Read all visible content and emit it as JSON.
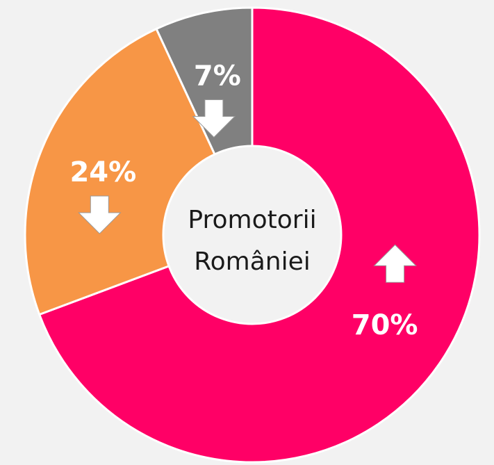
{
  "chart_data": {
    "type": "donut",
    "center_text": [
      "Promotorii",
      "României"
    ],
    "categories": [
      null,
      null,
      null
    ],
    "values": [
      70,
      24,
      7
    ],
    "value_labels": [
      "70%",
      "24%",
      "7%"
    ],
    "colors": [
      "#ff0066",
      "#f79646",
      "#808080"
    ],
    "trends": [
      "up",
      "down",
      "down"
    ]
  }
}
